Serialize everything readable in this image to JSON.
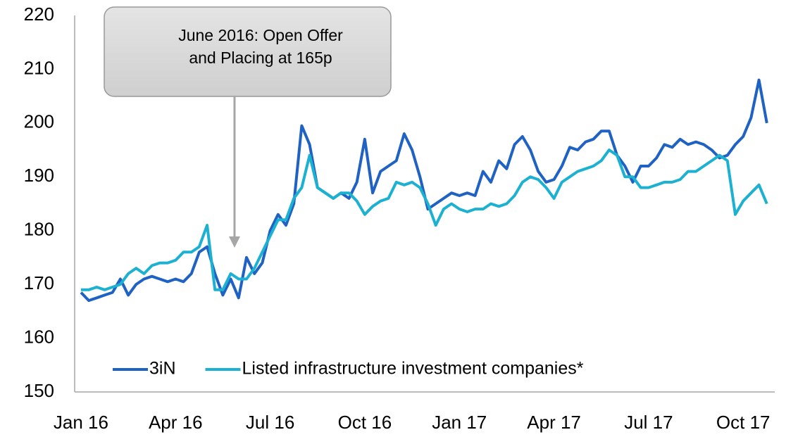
{
  "chart_data": {
    "type": "line",
    "annotation": [
      "June 2016: Open Offer",
      "and Placing at 165p"
    ],
    "x": [
      0,
      0.25,
      0.5,
      0.75,
      1,
      1.25,
      1.5,
      1.75,
      2,
      2.25,
      2.5,
      2.75,
      3,
      3.25,
      3.5,
      3.75,
      4,
      4.25,
      4.5,
      4.75,
      5,
      5.25,
      5.5,
      5.75,
      6,
      6.25,
      6.5,
      6.75,
      7,
      7.25,
      7.5,
      7.75,
      8,
      8.25,
      8.5,
      8.75,
      9,
      9.25,
      9.5,
      9.75,
      10,
      10.25,
      10.5,
      10.75,
      11,
      11.25,
      11.5,
      11.75,
      12,
      12.25,
      12.5,
      12.75,
      13,
      13.25,
      13.5,
      13.75,
      14,
      14.25,
      14.5,
      14.75,
      15,
      15.25,
      15.5,
      15.75,
      16,
      16.25,
      16.5,
      16.75,
      17,
      17.25,
      17.5,
      17.75,
      18,
      18.25,
      18.5,
      18.75,
      19,
      19.25,
      19.5,
      19.75,
      20,
      20.25,
      20.5,
      20.75,
      21,
      21.25,
      21.5,
      21.75
    ],
    "series": [
      {
        "name": "3iN",
        "color": "#1f62c4",
        "values": [
          168.5,
          167,
          167.5,
          168,
          168.5,
          171,
          168,
          170,
          171,
          171.5,
          171,
          170.5,
          171,
          170.5,
          172,
          176,
          177,
          172,
          168,
          171,
          167.5,
          175,
          172,
          174,
          180,
          183,
          181,
          185,
          199.5,
          196,
          188,
          187,
          186,
          187,
          186,
          189,
          197,
          187,
          191,
          192,
          193,
          198,
          195,
          190,
          184,
          185,
          186,
          187,
          186.5,
          187,
          186.5,
          191,
          189,
          193,
          191.5,
          196,
          197.5,
          195,
          191,
          189,
          189.5,
          192,
          195.5,
          195,
          196.5,
          197,
          198.5,
          198.5,
          194,
          192,
          189,
          192,
          192,
          193.5,
          196,
          195.5,
          197,
          196,
          196.5,
          196,
          195,
          193.5,
          194,
          196,
          197.5,
          201,
          208,
          200
        ]
      },
      {
        "name": "Listed infrastructure investment companies*",
        "color": "#1cb1d1",
        "values": [
          169,
          169,
          169.5,
          169,
          169.5,
          170,
          172,
          173,
          172,
          173.5,
          174,
          174,
          174.5,
          176,
          176,
          177,
          181,
          169,
          169,
          172,
          171,
          171,
          173,
          176,
          179,
          182,
          182,
          186,
          188,
          194,
          188,
          187,
          186,
          187,
          187,
          185.5,
          183,
          184.5,
          185.5,
          186,
          189,
          188.5,
          189,
          188,
          185,
          181,
          184,
          185,
          184,
          183.5,
          184,
          184,
          185,
          184.5,
          185,
          186.5,
          189,
          190,
          189.5,
          188,
          186,
          189,
          190,
          191,
          191.5,
          192,
          193,
          195,
          194,
          190,
          190,
          188,
          188,
          188.5,
          189,
          189,
          189.5,
          191,
          191,
          192,
          193,
          194,
          193,
          183,
          185.5,
          187,
          188.5,
          185
        ]
      }
    ],
    "xlim": [
      -0.2,
      22
    ],
    "xticks": [
      {
        "value": 0,
        "label": "Jan 16"
      },
      {
        "value": 3,
        "label": "Apr 16"
      },
      {
        "value": 6,
        "label": "Jul 16"
      },
      {
        "value": 9,
        "label": "Oct 16"
      },
      {
        "value": 12,
        "label": "Jan 17"
      },
      {
        "value": 15,
        "label": "Apr 17"
      },
      {
        "value": 18,
        "label": "Jul 17"
      },
      {
        "value": 21,
        "label": "Oct 17"
      }
    ],
    "ylim": [
      150,
      220
    ],
    "yticks": [
      150,
      160,
      170,
      180,
      190,
      200,
      210,
      220
    ],
    "grid": false,
    "legend": "bottom"
  }
}
